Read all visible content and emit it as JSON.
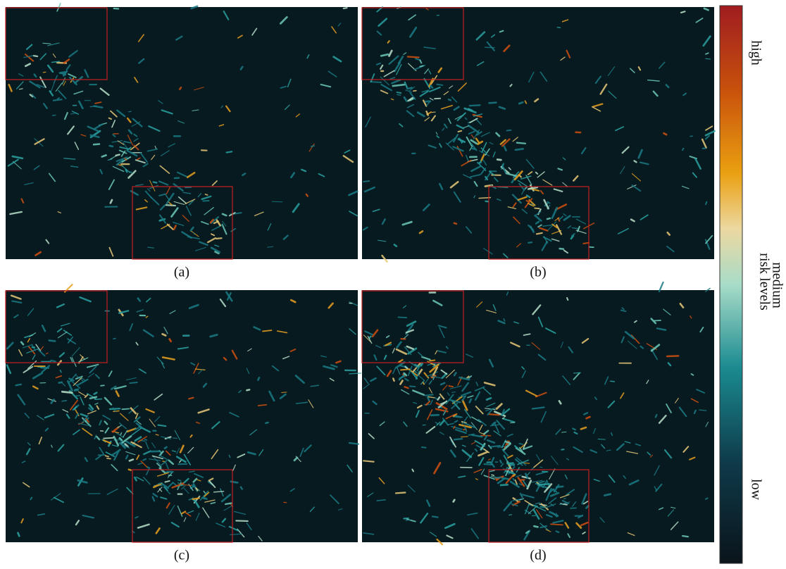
{
  "panels": [
    {
      "caption": "(a)"
    },
    {
      "caption": "(b)"
    },
    {
      "caption": "(c)"
    },
    {
      "caption": "(d)"
    }
  ],
  "colorbar": {
    "title": "risk levels",
    "high": "high",
    "medium": "medium",
    "low": "low"
  }
}
